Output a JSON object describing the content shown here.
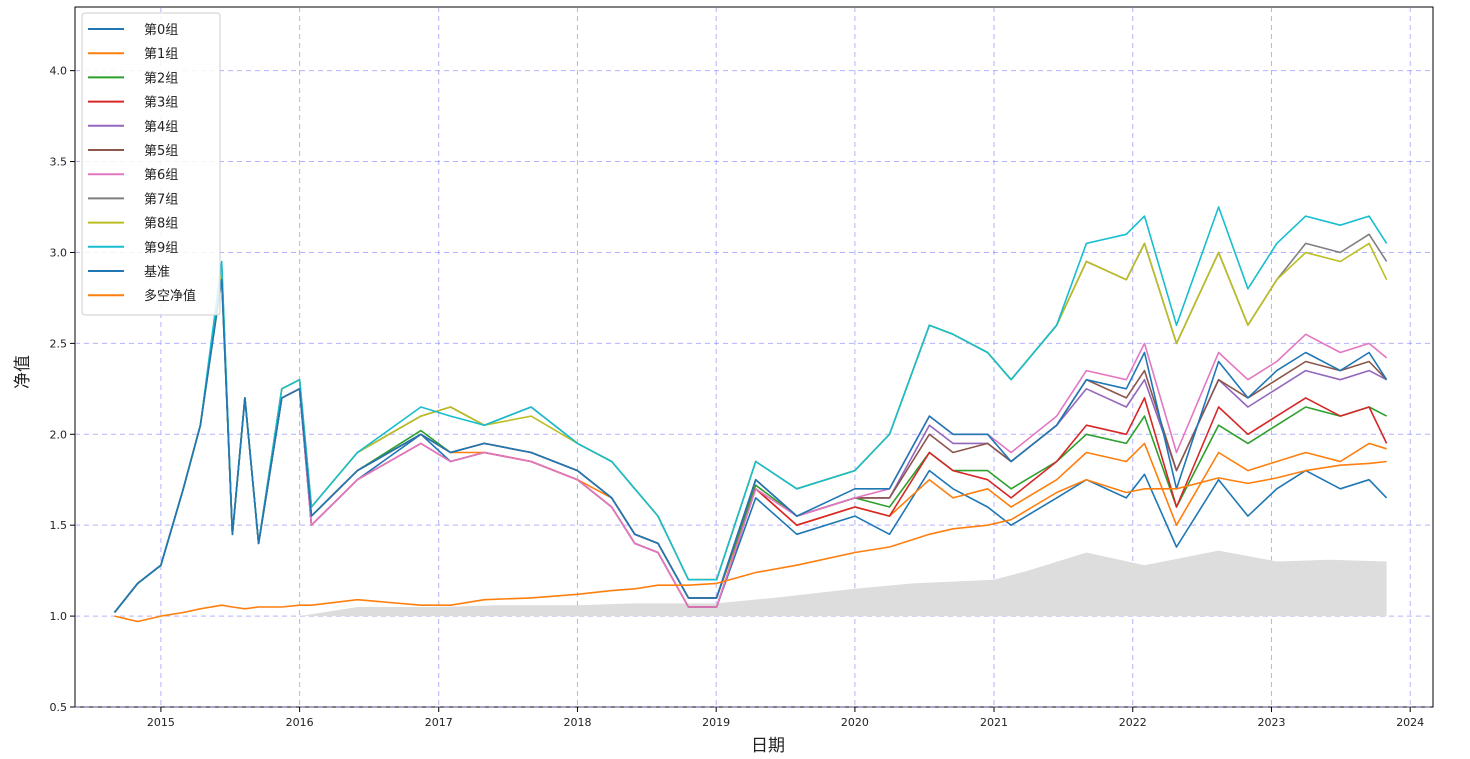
{
  "chart_data": {
    "type": "line",
    "title": "",
    "xlabel": "日期",
    "ylabel": "净值",
    "xlim": [
      "2014-05-20",
      "2024-03-01"
    ],
    "ylim": [
      0.5,
      4.35
    ],
    "x_ticks": [
      "2015",
      "2016",
      "2017",
      "2018",
      "2019",
      "2020",
      "2021",
      "2022",
      "2023",
      "2024"
    ],
    "y_ticks": [
      "0.5",
      "1.0",
      "1.5",
      "2.0",
      "2.5",
      "3.0",
      "3.5",
      "4.0"
    ],
    "grid": true,
    "legend_position": "top-left",
    "x": [
      "2014-09-01",
      "2014-11-01",
      "2015-01-01",
      "2015-03-01",
      "2015-04-15",
      "2015-06-10",
      "2015-07-08",
      "2015-08-10",
      "2015-09-15",
      "2015-11-15",
      "2016-01-01",
      "2016-02-01",
      "2016-06-01",
      "2016-11-15",
      "2017-02-01",
      "2017-05-01",
      "2017-09-01",
      "2018-01-01",
      "2018-04-01",
      "2018-06-01",
      "2018-08-01",
      "2018-10-20",
      "2019-01-02",
      "2019-04-15",
      "2019-08-01",
      "2020-01-01",
      "2020-04-01",
      "2020-07-15",
      "2020-09-15",
      "2020-12-15",
      "2021-02-15",
      "2021-06-15",
      "2021-09-01",
      "2021-12-15",
      "2022-02-01",
      "2022-04-26",
      "2022-08-15",
      "2022-10-31",
      "2023-01-15",
      "2023-04-01",
      "2023-07-01",
      "2023-09-15",
      "2023-10-31"
    ],
    "series": [
      {
        "name": "第0组",
        "color": "#1f77b4",
        "values": [
          1.02,
          1.18,
          1.28,
          1.7,
          2.05,
          2.9,
          1.45,
          2.2,
          1.4,
          2.2,
          2.25,
          1.5,
          1.75,
          2.0,
          1.85,
          1.9,
          1.85,
          1.75,
          1.6,
          1.4,
          1.35,
          1.05,
          1.05,
          1.65,
          1.45,
          1.55,
          1.45,
          1.8,
          1.7,
          1.6,
          1.5,
          1.65,
          1.75,
          1.65,
          1.78,
          1.38,
          1.75,
          1.55,
          1.7,
          1.8,
          1.7,
          1.75,
          1.65
        ]
      },
      {
        "name": "第1组",
        "color": "#ff7f0e",
        "values": [
          1.02,
          1.18,
          1.28,
          1.7,
          2.05,
          2.85,
          1.45,
          2.2,
          1.4,
          2.2,
          2.25,
          1.55,
          1.8,
          2.0,
          1.9,
          1.9,
          1.85,
          1.75,
          1.65,
          1.45,
          1.4,
          1.1,
          1.1,
          1.7,
          1.5,
          1.6,
          1.55,
          1.75,
          1.65,
          1.7,
          1.6,
          1.75,
          1.9,
          1.85,
          1.95,
          1.5,
          1.9,
          1.8,
          1.85,
          1.9,
          1.85,
          1.95,
          1.92
        ]
      },
      {
        "name": "第2组",
        "color": "#2ca02c",
        "values": [
          1.02,
          1.18,
          1.28,
          1.7,
          2.05,
          2.88,
          1.45,
          2.2,
          1.4,
          2.2,
          2.25,
          1.55,
          1.8,
          2.02,
          1.9,
          1.95,
          1.9,
          1.8,
          1.65,
          1.45,
          1.4,
          1.1,
          1.1,
          1.72,
          1.55,
          1.65,
          1.6,
          1.9,
          1.8,
          1.8,
          1.7,
          1.85,
          2.0,
          1.95,
          2.1,
          1.6,
          2.05,
          1.95,
          2.05,
          2.15,
          2.1,
          2.15,
          2.1
        ]
      },
      {
        "name": "第3组",
        "color": "#d62728",
        "values": [
          1.02,
          1.18,
          1.28,
          1.7,
          2.05,
          2.88,
          1.45,
          2.2,
          1.4,
          2.2,
          2.25,
          1.5,
          1.75,
          1.95,
          1.85,
          1.9,
          1.85,
          1.75,
          1.6,
          1.4,
          1.35,
          1.05,
          1.05,
          1.7,
          1.5,
          1.6,
          1.55,
          1.9,
          1.8,
          1.75,
          1.65,
          1.85,
          2.05,
          2.0,
          2.2,
          1.6,
          2.15,
          2.0,
          2.1,
          2.2,
          2.1,
          2.15,
          1.95
        ]
      },
      {
        "name": "第4组",
        "color": "#9467bd",
        "values": [
          1.02,
          1.18,
          1.28,
          1.7,
          2.05,
          2.88,
          1.45,
          2.2,
          1.4,
          2.2,
          2.25,
          1.55,
          1.8,
          2.0,
          1.9,
          1.95,
          1.9,
          1.8,
          1.65,
          1.45,
          1.4,
          1.1,
          1.1,
          1.75,
          1.55,
          1.65,
          1.65,
          2.05,
          1.95,
          1.95,
          1.85,
          2.05,
          2.25,
          2.15,
          2.3,
          1.8,
          2.3,
          2.15,
          2.25,
          2.35,
          2.3,
          2.35,
          2.3
        ]
      },
      {
        "name": "第5组",
        "color": "#8c564b",
        "values": [
          1.02,
          1.18,
          1.28,
          1.7,
          2.05,
          2.9,
          1.45,
          2.2,
          1.4,
          2.2,
          2.25,
          1.55,
          1.8,
          2.0,
          1.9,
          1.95,
          1.9,
          1.8,
          1.65,
          1.45,
          1.4,
          1.1,
          1.1,
          1.75,
          1.55,
          1.65,
          1.65,
          2.0,
          1.9,
          1.95,
          1.85,
          2.05,
          2.3,
          2.2,
          2.35,
          1.8,
          2.3,
          2.2,
          2.3,
          2.4,
          2.35,
          2.4,
          2.3
        ]
      },
      {
        "name": "第6组",
        "color": "#e377c2",
        "values": [
          1.02,
          1.18,
          1.28,
          1.7,
          2.05,
          2.9,
          1.45,
          2.2,
          1.4,
          2.2,
          2.25,
          1.5,
          1.75,
          1.95,
          1.85,
          1.9,
          1.85,
          1.75,
          1.6,
          1.4,
          1.35,
          1.05,
          1.05,
          1.7,
          1.55,
          1.65,
          1.7,
          2.1,
          2.0,
          2.0,
          1.9,
          2.1,
          2.35,
          2.3,
          2.5,
          1.9,
          2.45,
          2.3,
          2.4,
          2.55,
          2.45,
          2.5,
          2.42
        ]
      },
      {
        "name": "第7组",
        "color": "#7f7f7f",
        "values": [
          1.02,
          1.18,
          1.28,
          1.7,
          2.05,
          2.92,
          1.45,
          2.2,
          1.4,
          2.25,
          2.3,
          1.6,
          1.9,
          2.1,
          2.15,
          2.05,
          2.15,
          1.95,
          1.85,
          1.7,
          1.55,
          1.2,
          1.2,
          1.85,
          1.7,
          1.8,
          2.0,
          2.6,
          2.55,
          2.45,
          2.3,
          2.6,
          2.95,
          2.85,
          3.05,
          2.5,
          3.0,
          2.6,
          2.85,
          3.05,
          3.0,
          3.1,
          2.95
        ]
      },
      {
        "name": "第8组",
        "color": "#bcbd22",
        "values": [
          1.02,
          1.18,
          1.28,
          1.7,
          2.05,
          2.92,
          1.45,
          2.2,
          1.4,
          2.25,
          2.3,
          1.6,
          1.9,
          2.1,
          2.15,
          2.05,
          2.1,
          1.95,
          1.85,
          1.7,
          1.55,
          1.2,
          1.2,
          1.85,
          1.7,
          1.8,
          2.0,
          2.6,
          2.55,
          2.45,
          2.3,
          2.6,
          2.95,
          2.85,
          3.05,
          2.5,
          3.0,
          2.6,
          2.85,
          3.0,
          2.95,
          3.05,
          2.85
        ]
      },
      {
        "name": "第9组",
        "color": "#17becf",
        "values": [
          1.02,
          1.18,
          1.28,
          1.7,
          2.05,
          2.95,
          1.45,
          2.2,
          1.4,
          2.25,
          2.3,
          1.6,
          1.9,
          2.15,
          2.1,
          2.05,
          2.15,
          1.95,
          1.85,
          1.7,
          1.55,
          1.2,
          1.2,
          1.85,
          1.7,
          1.8,
          2.0,
          2.6,
          2.55,
          2.45,
          2.3,
          2.6,
          3.05,
          3.1,
          3.2,
          2.6,
          3.25,
          2.8,
          3.05,
          3.2,
          3.15,
          3.2,
          3.05
        ]
      },
      {
        "name": "基准",
        "color": "#1f77b4",
        "values": [
          1.02,
          1.18,
          1.28,
          1.7,
          2.05,
          2.85,
          1.45,
          2.2,
          1.4,
          2.2,
          2.25,
          1.55,
          1.8,
          2.0,
          1.9,
          1.95,
          1.9,
          1.8,
          1.65,
          1.45,
          1.4,
          1.1,
          1.1,
          1.75,
          1.55,
          1.7,
          1.7,
          2.1,
          2.0,
          2.0,
          1.85,
          2.05,
          2.3,
          2.25,
          2.45,
          1.7,
          2.4,
          2.2,
          2.35,
          2.45,
          2.35,
          2.45,
          2.3
        ]
      },
      {
        "name": "多空净值",
        "color": "#ff7f0e",
        "values": [
          1.0,
          0.97,
          1.0,
          1.02,
          1.04,
          1.06,
          1.05,
          1.04,
          1.05,
          1.05,
          1.06,
          1.06,
          1.09,
          1.06,
          1.06,
          1.09,
          1.1,
          1.12,
          1.14,
          1.15,
          1.17,
          1.17,
          1.18,
          1.24,
          1.28,
          1.35,
          1.38,
          1.45,
          1.48,
          1.5,
          1.53,
          1.68,
          1.75,
          1.68,
          1.7,
          1.7,
          1.76,
          1.73,
          1.76,
          1.8,
          1.83,
          1.84,
          1.85
        ]
      }
    ],
    "fill_area": {
      "color": "#dddddd",
      "baseline": 1.0,
      "x": [
        "2016-01-01",
        "2016-06-01",
        "2017-01-01",
        "2017-06-01",
        "2018-01-01",
        "2018-06-01",
        "2019-01-01",
        "2019-06-01",
        "2020-01-01",
        "2020-06-01",
        "2021-01-01",
        "2021-04-01",
        "2021-09-01",
        "2022-02-01",
        "2022-08-15",
        "2023-01-15",
        "2023-06-01",
        "2023-10-31"
      ],
      "values": [
        1.0,
        1.05,
        1.05,
        1.06,
        1.06,
        1.07,
        1.07,
        1.1,
        1.15,
        1.18,
        1.2,
        1.25,
        1.35,
        1.28,
        1.36,
        1.3,
        1.31,
        1.3
      ]
    }
  }
}
